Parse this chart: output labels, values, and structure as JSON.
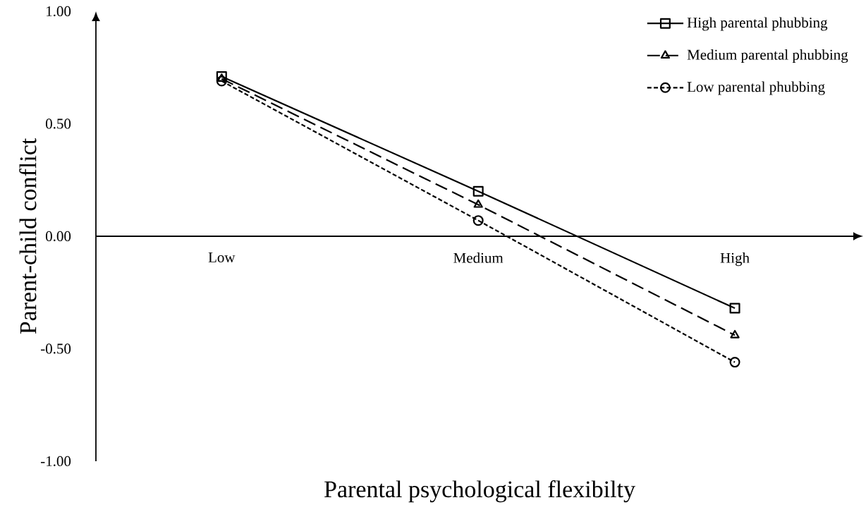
{
  "chart_data": {
    "type": "line",
    "xlabel": "Parental psychological flexibilty",
    "ylabel": "Parent-child conflict",
    "categories": [
      "Low",
      "Medium",
      "High"
    ],
    "ylim": [
      -1,
      1
    ],
    "yticks": [
      {
        "value": -1,
        "label": "-1.00"
      },
      {
        "value": -0.5,
        "label": "-0.50"
      },
      {
        "value": 0,
        "label": "0.00"
      },
      {
        "value": 0.5,
        "label": "0.50"
      },
      {
        "value": 1,
        "label": "1.00"
      }
    ],
    "legend": "top right",
    "grid": false,
    "series": [
      {
        "name": "High parental phubbing",
        "color": "#000000",
        "marker": "square",
        "line_style": "solid",
        "values": [
          0.71,
          0.2,
          -0.32
        ]
      },
      {
        "name": "Medium parental phubbing",
        "color": "#000000",
        "marker": "triangle",
        "line_style": "dashed",
        "values": [
          0.7,
          0.14,
          -0.44
        ]
      },
      {
        "name": "Low parental phubbing",
        "color": "#000000",
        "marker": "circle",
        "line_style": "dotted",
        "values": [
          0.69,
          0.07,
          -0.56
        ]
      }
    ]
  }
}
